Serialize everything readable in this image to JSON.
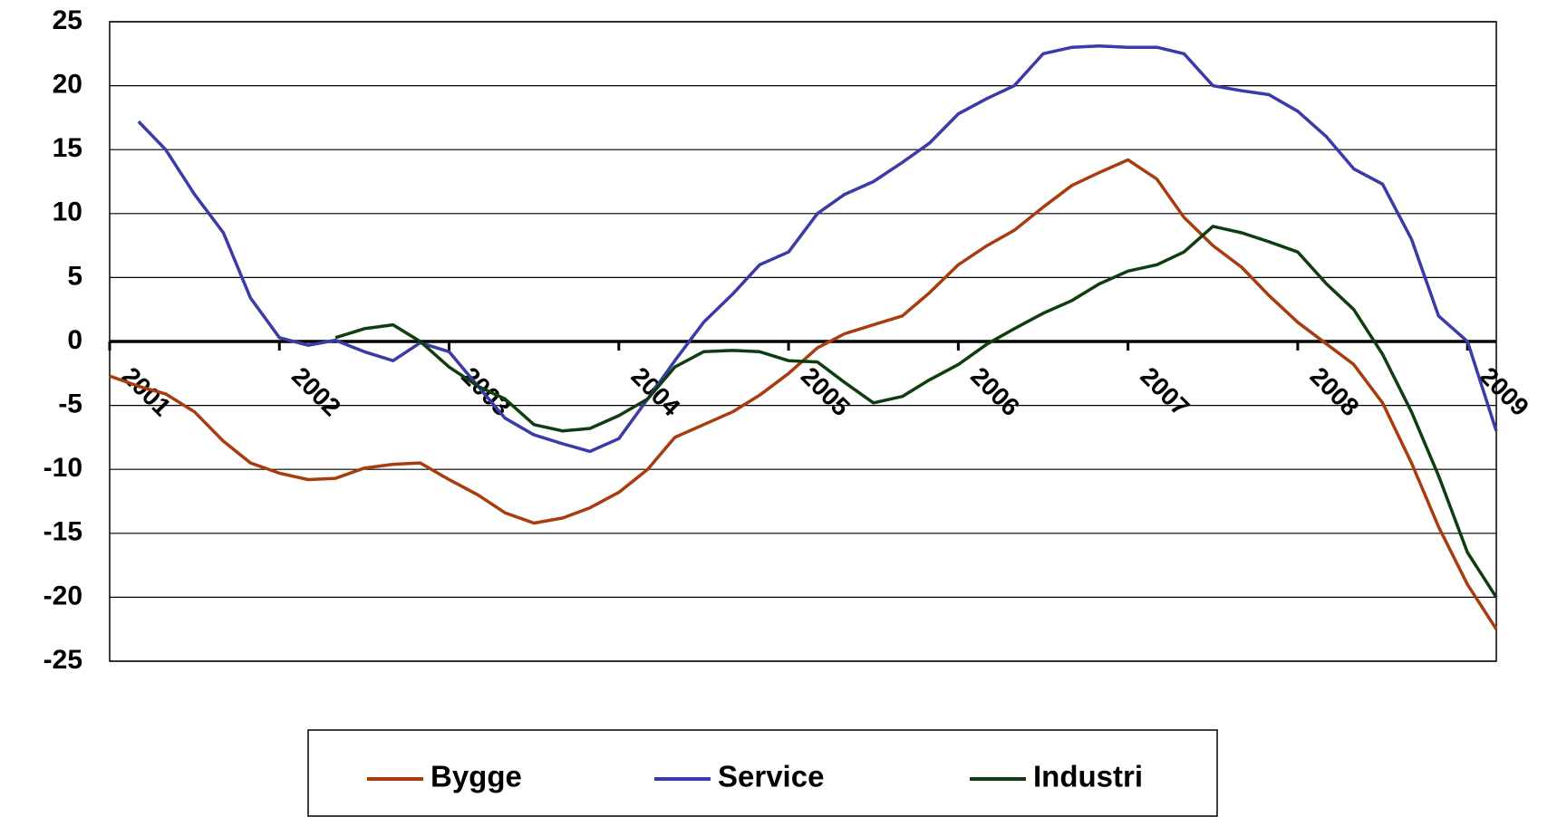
{
  "chart_data": {
    "type": "line",
    "x": [
      2001.0,
      2001.17,
      2001.33,
      2001.5,
      2001.67,
      2001.83,
      2002.0,
      2002.17,
      2002.33,
      2002.5,
      2002.67,
      2002.83,
      2003.0,
      2003.17,
      2003.33,
      2003.5,
      2003.67,
      2003.83,
      2004.0,
      2004.17,
      2004.33,
      2004.5,
      2004.67,
      2004.83,
      2005.0,
      2005.17,
      2005.33,
      2005.5,
      2005.67,
      2005.83,
      2006.0,
      2006.17,
      2006.33,
      2006.5,
      2006.67,
      2006.83,
      2007.0,
      2007.17,
      2007.33,
      2007.5,
      2007.67,
      2007.83,
      2008.0,
      2008.17,
      2008.33,
      2008.5,
      2008.67,
      2008.83,
      2009.0,
      2009.17
    ],
    "series": [
      {
        "name": "Bygge",
        "color": "#a83c0f",
        "values": [
          -2.7,
          -3.5,
          -4.1,
          -5.5,
          -7.8,
          -9.5,
          -10.3,
          -10.8,
          -10.7,
          -9.9,
          -9.6,
          -9.5,
          -10.8,
          -12.0,
          -13.4,
          -14.2,
          -13.8,
          -13.0,
          -11.8,
          -10.0,
          -7.5,
          -6.5,
          -5.5,
          -4.2,
          -2.5,
          -0.5,
          0.6,
          1.3,
          2.0,
          3.8,
          6.0,
          7.5,
          8.7,
          10.5,
          12.2,
          13.2,
          14.2,
          12.7,
          9.7,
          7.5,
          5.8,
          3.6,
          1.5,
          -0.2,
          -1.8,
          -4.8,
          -9.5,
          -14.5,
          -19.0,
          -22.5
        ]
      },
      {
        "name": "Service",
        "color": "#3a3aa8",
        "values": [
          null,
          17.2,
          15.0,
          11.5,
          8.5,
          3.4,
          0.3,
          -0.3,
          0.1,
          -0.8,
          -1.5,
          -0.1,
          -0.8,
          -3.5,
          -6.0,
          -7.3,
          -8.0,
          -8.6,
          -7.6,
          -4.5,
          -1.5,
          1.5,
          3.7,
          6.0,
          7.0,
          10.0,
          11.5,
          12.5,
          14.0,
          15.5,
          17.8,
          19.0,
          20.0,
          22.5,
          23.0,
          23.1,
          23.0,
          23.0,
          22.5,
          20.0,
          19.6,
          19.3,
          18.0,
          16.0,
          13.5,
          12.3,
          8.0,
          2.0,
          0.0,
          -7.0
        ]
      },
      {
        "name": "Industri",
        "color": "#0f3d0f",
        "values": [
          null,
          null,
          null,
          null,
          null,
          null,
          null,
          null,
          0.3,
          1.0,
          1.3,
          0.0,
          -2.0,
          -3.5,
          -4.5,
          -6.5,
          -7.0,
          -6.8,
          -5.8,
          -4.5,
          -2.0,
          -0.8,
          -0.7,
          -0.8,
          -1.5,
          -1.6,
          -3.2,
          -4.8,
          -4.3,
          -3.0,
          -1.8,
          -0.2,
          1.0,
          2.2,
          3.2,
          4.5,
          5.5,
          6.0,
          7.0,
          9.0,
          8.5,
          7.8,
          7.0,
          4.5,
          2.5,
          -1.0,
          -5.5,
          -10.5,
          -16.5,
          -20.0
        ]
      }
    ],
    "xlim": [
      2001,
      2009.17
    ],
    "xticks": [
      2001,
      2002,
      2003,
      2004,
      2005,
      2006,
      2007,
      2008,
      2009
    ],
    "ylim": [
      -25,
      25
    ],
    "yticks": [
      -25,
      -20,
      -15,
      -10,
      -5,
      0,
      5,
      10,
      15,
      20,
      25
    ],
    "grid": true
  }
}
